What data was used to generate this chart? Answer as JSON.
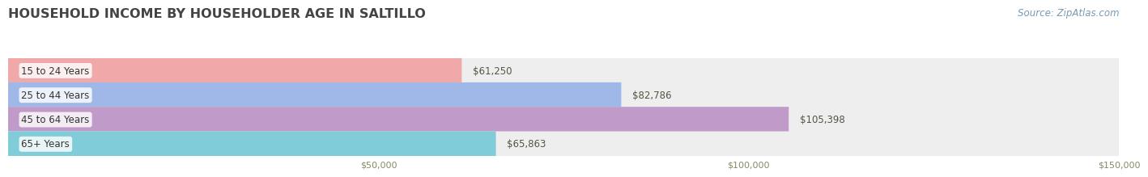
{
  "title": "HOUSEHOLD INCOME BY HOUSEHOLDER AGE IN SALTILLO",
  "source": "Source: ZipAtlas.com",
  "categories": [
    "15 to 24 Years",
    "25 to 44 Years",
    "45 to 64 Years",
    "65+ Years"
  ],
  "values": [
    61250,
    82786,
    105398,
    65863
  ],
  "bar_colors": [
    "#f0a8a8",
    "#9fb8e8",
    "#c09ac8",
    "#80ccd8"
  ],
  "bar_bg_color": "#eeeeee",
  "background_color": "#ffffff",
  "xmin": 0,
  "xmax": 150000,
  "xticks": [
    50000,
    100000,
    150000
  ],
  "xtick_labels": [
    "$50,000",
    "$100,000",
    "$150,000"
  ],
  "value_labels": [
    "$61,250",
    "$82,786",
    "$105,398",
    "$65,863"
  ],
  "title_fontsize": 11.5,
  "label_fontsize": 8.5,
  "tick_fontsize": 8,
  "source_fontsize": 8.5
}
